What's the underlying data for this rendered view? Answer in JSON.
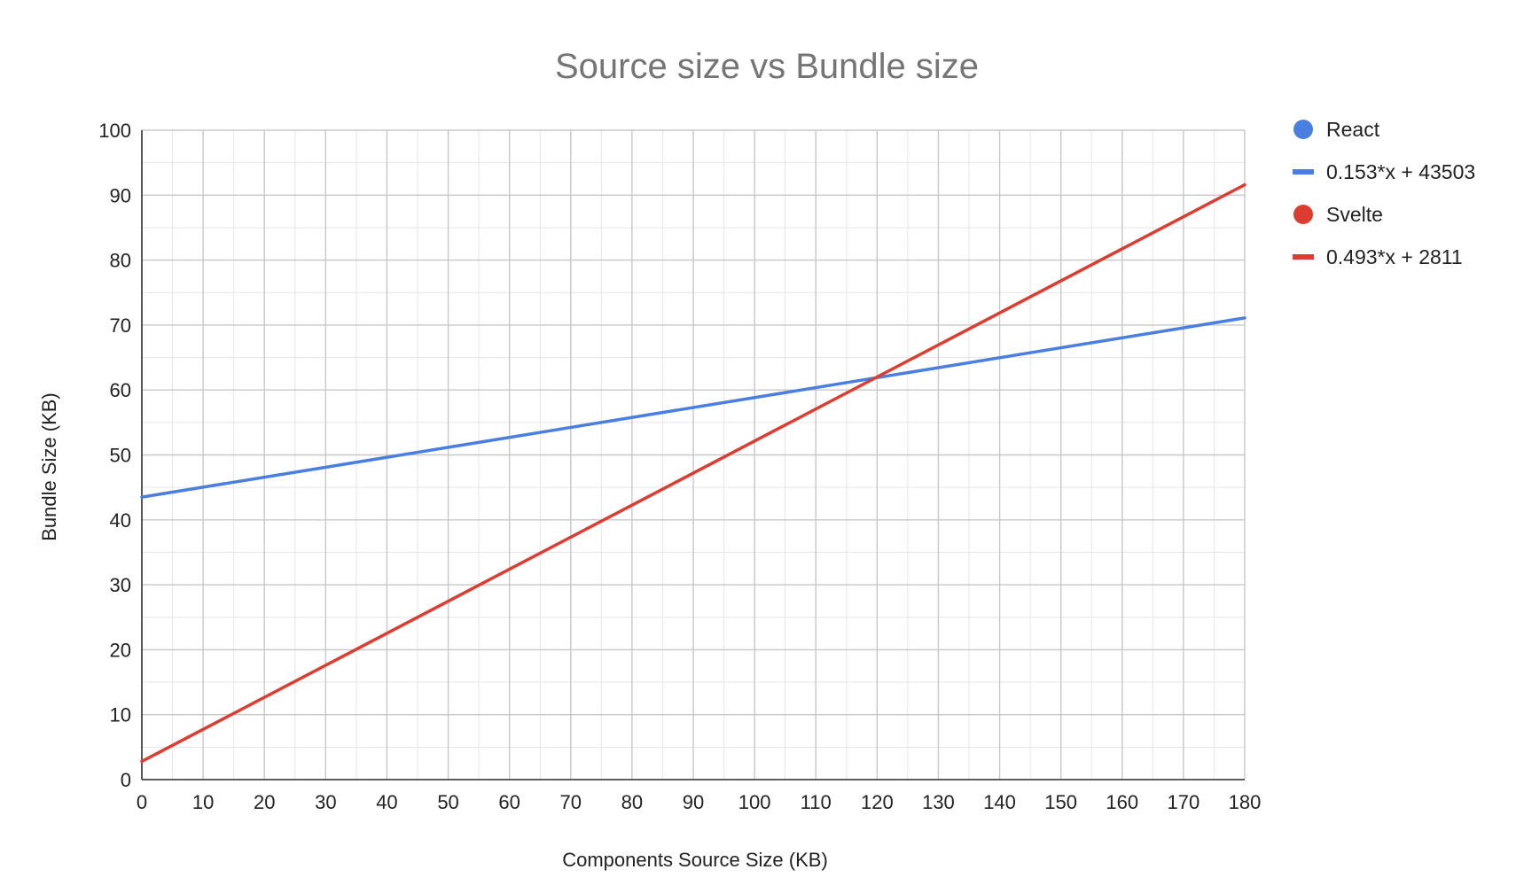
{
  "chart_data": {
    "type": "line",
    "title": "Source size vs Bundle size",
    "xlabel": "Components Source Size (KB)",
    "ylabel": "Bundle Size (KB)",
    "xlim": [
      0,
      180
    ],
    "ylim": [
      0,
      100
    ],
    "x_ticks": [
      "0",
      "10",
      "20",
      "30",
      "40",
      "50",
      "60",
      "70",
      "80",
      "90",
      "100",
      "110",
      "120",
      "130",
      "140",
      "150",
      "160",
      "170",
      "180"
    ],
    "y_ticks": [
      "0",
      "10",
      "20",
      "30",
      "40",
      "50",
      "60",
      "70",
      "80",
      "90",
      "100"
    ],
    "grid": true,
    "legend_position": "right",
    "series": [
      {
        "name": "React",
        "kind": "points",
        "color": "#4a7fe0",
        "x": [],
        "y": []
      },
      {
        "name": "0.153*x + 43503",
        "kind": "trendline",
        "color": "#4a7fe0",
        "x": [
          0,
          180
        ],
        "y": [
          43.5,
          71.1
        ]
      },
      {
        "name": "Svelte",
        "kind": "points",
        "color": "#dc3d31",
        "x": [],
        "y": []
      },
      {
        "name": "0.493*x + 2811",
        "kind": "trendline",
        "color": "#dc3d31",
        "x": [
          0,
          180
        ],
        "y": [
          2.8,
          91.6
        ]
      }
    ]
  }
}
